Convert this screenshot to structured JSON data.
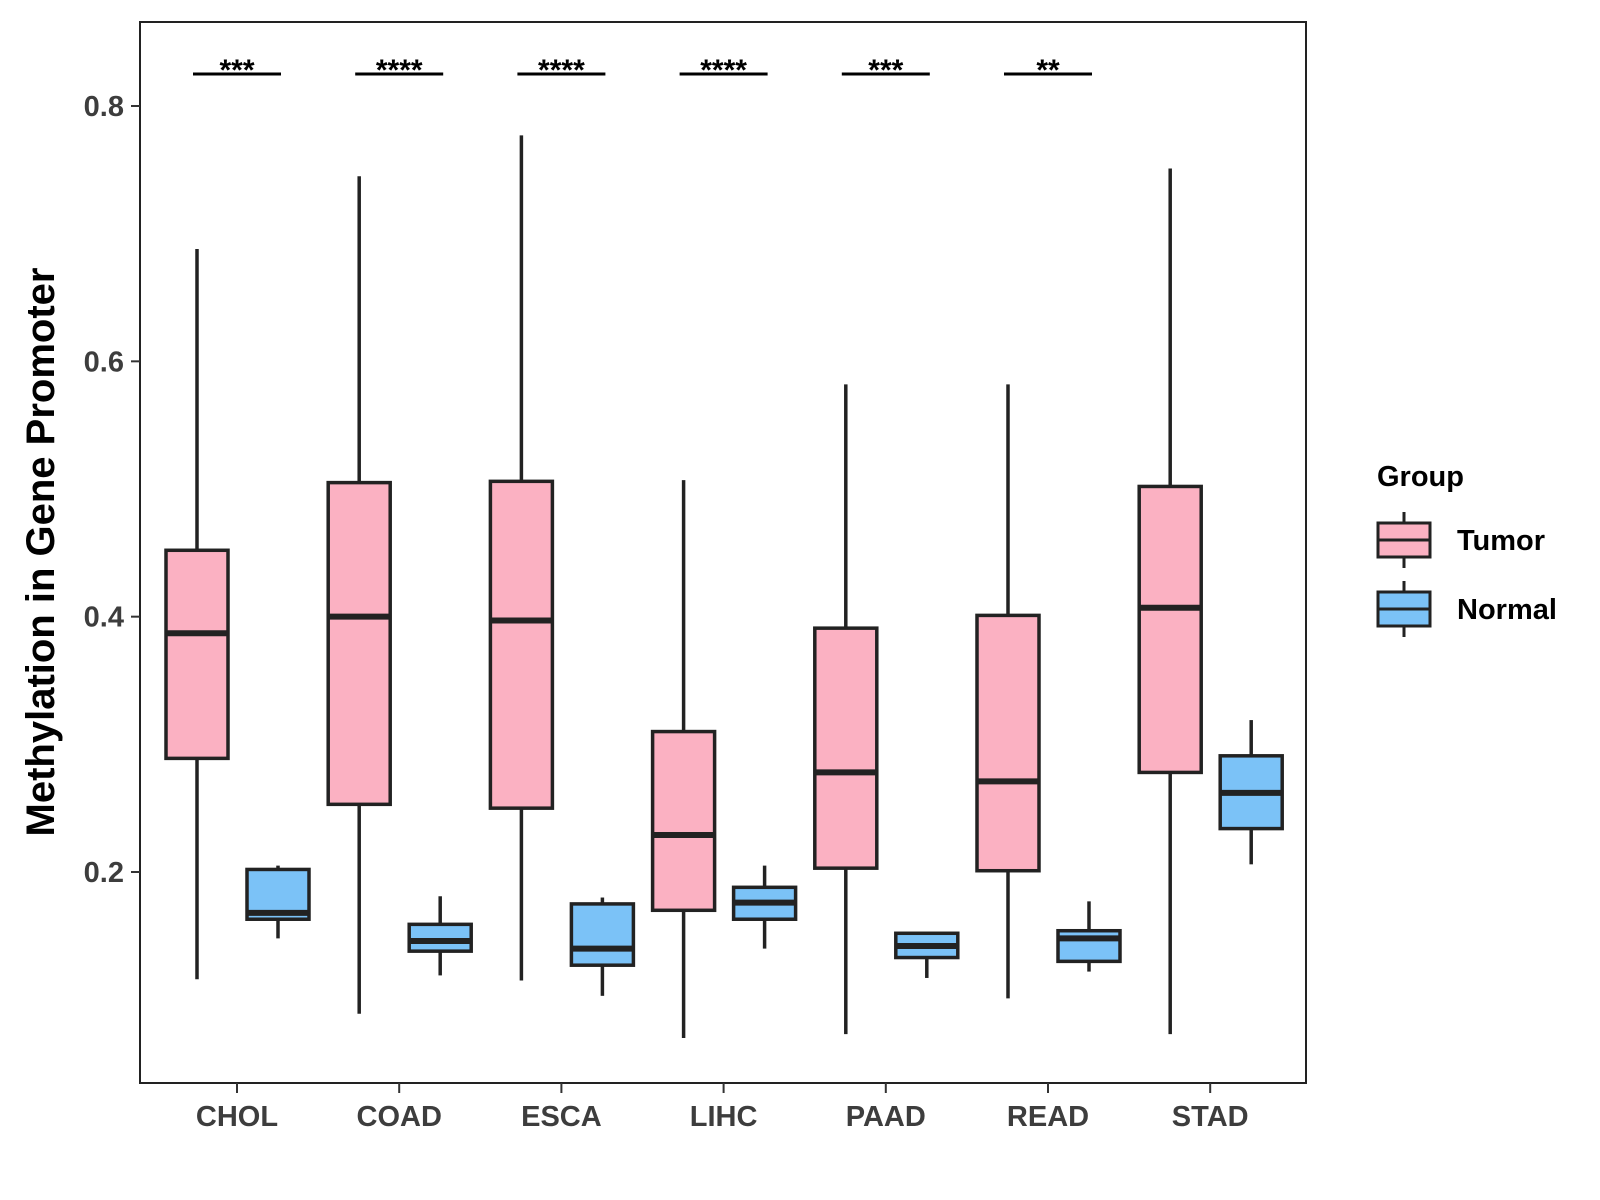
{
  "chart_data": {
    "type": "box",
    "title": "",
    "xlabel": "",
    "ylabel": "Methylation in Gene Promoter",
    "ylim": [
      0.03,
      0.86
    ],
    "yticks": [
      0.2,
      0.4,
      0.6,
      0.8
    ],
    "ytick_labels": [
      "0.2",
      "0.4",
      "0.6",
      "0.8"
    ],
    "grid": false,
    "legend": {
      "title": "Group",
      "position": "right",
      "entries": [
        {
          "name": "Tumor",
          "color": "#FBB1C2"
        },
        {
          "name": "Normal",
          "color": "#7BC2F7"
        }
      ]
    },
    "categories": [
      "CHOL",
      "COAD",
      "ESCA",
      "LIHC",
      "PAAD",
      "READ",
      "STAD"
    ],
    "series": [
      {
        "name": "Tumor",
        "color": "#FBB1C2",
        "boxes": [
          {
            "whisker_low": 0.116,
            "q1": 0.289,
            "median": 0.387,
            "q3": 0.452,
            "whisker_high": 0.688
          },
          {
            "whisker_low": 0.089,
            "q1": 0.253,
            "median": 0.4,
            "q3": 0.505,
            "whisker_high": 0.745
          },
          {
            "whisker_low": 0.115,
            "q1": 0.25,
            "median": 0.397,
            "q3": 0.506,
            "whisker_high": 0.777
          },
          {
            "whisker_low": 0.07,
            "q1": 0.17,
            "median": 0.229,
            "q3": 0.31,
            "whisker_high": 0.507
          },
          {
            "whisker_low": 0.073,
            "q1": 0.203,
            "median": 0.278,
            "q3": 0.391,
            "whisker_high": 0.582
          },
          {
            "whisker_low": 0.101,
            "q1": 0.201,
            "median": 0.271,
            "q3": 0.401,
            "whisker_high": 0.582
          },
          {
            "whisker_low": 0.073,
            "q1": 0.278,
            "median": 0.407,
            "q3": 0.502,
            "whisker_high": 0.751
          }
        ]
      },
      {
        "name": "Normal",
        "color": "#7BC2F7",
        "boxes": [
          {
            "whisker_low": 0.148,
            "q1": 0.163,
            "median": 0.168,
            "q3": 0.202,
            "whisker_high": 0.205
          },
          {
            "whisker_low": 0.119,
            "q1": 0.138,
            "median": 0.146,
            "q3": 0.159,
            "whisker_high": 0.181
          },
          {
            "whisker_low": 0.103,
            "q1": 0.127,
            "median": 0.14,
            "q3": 0.175,
            "whisker_high": 0.18
          },
          {
            "whisker_low": 0.14,
            "q1": 0.163,
            "median": 0.176,
            "q3": 0.188,
            "whisker_high": 0.205
          },
          {
            "whisker_low": 0.117,
            "q1": 0.133,
            "median": 0.142,
            "q3": 0.152,
            "whisker_high": 0.152
          },
          {
            "whisker_low": 0.122,
            "q1": 0.13,
            "median": 0.148,
            "q3": 0.154,
            "whisker_high": 0.177
          },
          {
            "whisker_low": 0.206,
            "q1": 0.234,
            "median": 0.262,
            "q3": 0.291,
            "whisker_high": 0.319
          }
        ]
      }
    ],
    "significance": [
      {
        "category": "CHOL",
        "label": "***"
      },
      {
        "category": "COAD",
        "label": "****"
      },
      {
        "category": "ESCA",
        "label": "****"
      },
      {
        "category": "LIHC",
        "label": "****"
      },
      {
        "category": "PAAD",
        "label": "***"
      },
      {
        "category": "READ",
        "label": "**"
      }
    ]
  }
}
